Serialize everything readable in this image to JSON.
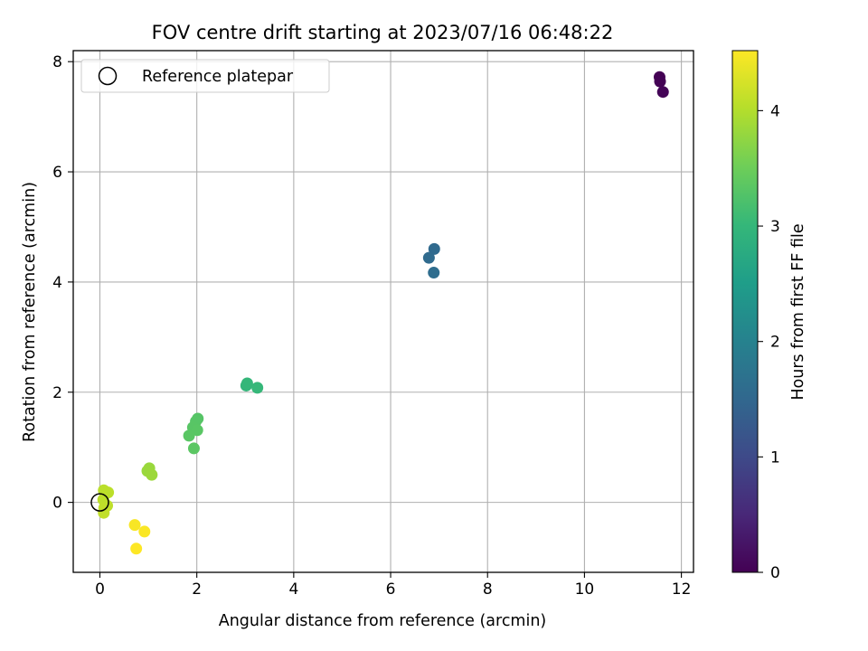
{
  "chart_data": {
    "type": "scatter",
    "title": "FOV centre drift starting at 2023/07/16 06:48:22",
    "xlabel": "Angular distance from reference (arcmin)",
    "ylabel": "Rotation from reference (arcmin)",
    "xlim": [
      -0.55,
      12.25
    ],
    "ylim": [
      -1.27,
      8.2
    ],
    "xticks": [
      0,
      2,
      4,
      6,
      8,
      10,
      12
    ],
    "yticks": [
      0,
      2,
      4,
      6,
      8
    ],
    "grid": true,
    "legend": {
      "entries": [
        "Reference platepar"
      ],
      "placement": "upper-left"
    },
    "reference_point": {
      "name": "Reference platepar",
      "x": 0,
      "y": 0
    },
    "colorbar": {
      "label": "Hours from first FF file",
      "range": [
        0,
        4.52
      ],
      "ticks": [
        0,
        1,
        2,
        3,
        4
      ],
      "colormap": "viridis"
    },
    "colormap_stops": [
      "#440154",
      "#482878",
      "#3e4a89",
      "#31688e",
      "#26828e",
      "#1f9e89",
      "#35b779",
      "#6ece58",
      "#b5de2b",
      "#fde725"
    ],
    "points": [
      {
        "x": 11.55,
        "y": 7.72,
        "t": 0.0
      },
      {
        "x": 11.56,
        "y": 7.64,
        "t": 0.02
      },
      {
        "x": 11.62,
        "y": 7.45,
        "t": 0.04
      },
      {
        "x": 6.9,
        "y": 4.6,
        "t": 1.55
      },
      {
        "x": 6.79,
        "y": 4.44,
        "t": 1.57
      },
      {
        "x": 6.89,
        "y": 4.17,
        "t": 1.6
      },
      {
        "x": 3.02,
        "y": 2.12,
        "t": 2.98
      },
      {
        "x": 3.04,
        "y": 2.16,
        "t": 3.0
      },
      {
        "x": 3.25,
        "y": 2.08,
        "t": 3.02
      },
      {
        "x": 2.02,
        "y": 1.52,
        "t": 3.3
      },
      {
        "x": 1.98,
        "y": 1.47,
        "t": 3.31
      },
      {
        "x": 1.92,
        "y": 1.36,
        "t": 3.32
      },
      {
        "x": 2.01,
        "y": 1.31,
        "t": 3.33
      },
      {
        "x": 1.84,
        "y": 1.21,
        "t": 3.34
      },
      {
        "x": 1.94,
        "y": 0.98,
        "t": 3.35
      },
      {
        "x": 1.02,
        "y": 0.62,
        "t": 3.82
      },
      {
        "x": 0.98,
        "y": 0.57,
        "t": 3.83
      },
      {
        "x": 1.07,
        "y": 0.5,
        "t": 3.84
      },
      {
        "x": 0.08,
        "y": 0.22,
        "t": 4.05
      },
      {
        "x": 0.17,
        "y": 0.18,
        "t": 4.06
      },
      {
        "x": 0.07,
        "y": 0.05,
        "t": 4.07
      },
      {
        "x": 0.15,
        "y": -0.06,
        "t": 4.08
      },
      {
        "x": 0.09,
        "y": -0.1,
        "t": 4.09
      },
      {
        "x": 0.08,
        "y": -0.19,
        "t": 4.1
      },
      {
        "x": 0.72,
        "y": -0.41,
        "t": 4.48
      },
      {
        "x": 0.92,
        "y": -0.53,
        "t": 4.5
      },
      {
        "x": 0.75,
        "y": -0.84,
        "t": 4.52
      }
    ]
  }
}
